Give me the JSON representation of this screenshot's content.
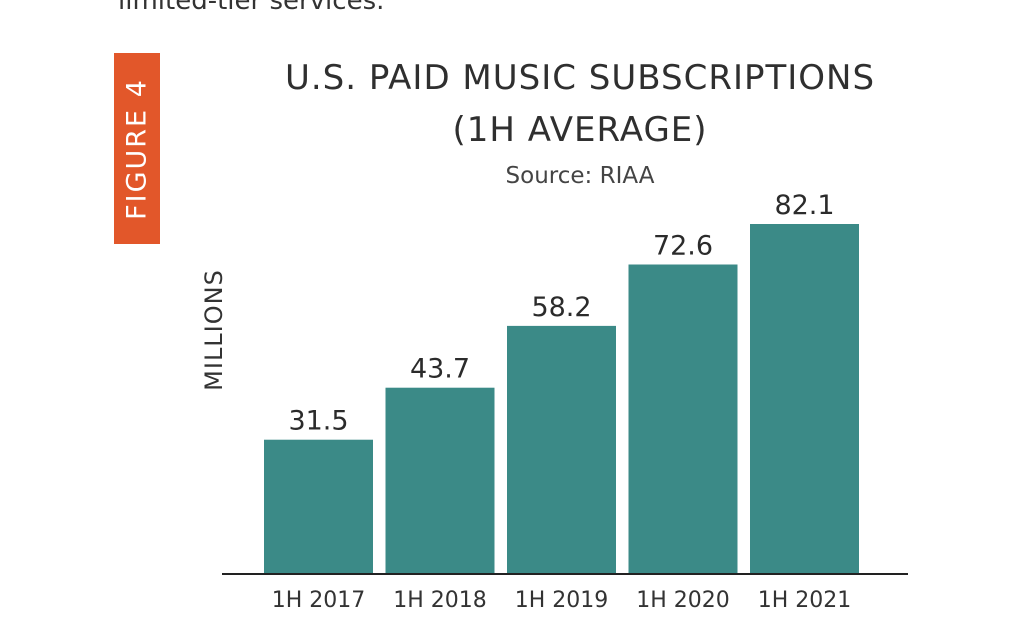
{
  "page": {
    "top_text": "limited-tier services.",
    "figure_tag": "FIGURE 4"
  },
  "chart_data": {
    "type": "bar",
    "title_line1": "U.S. PAID MUSIC SUBSCRIPTIONS",
    "title_line2": "(1H AVERAGE)",
    "subtitle": "Source: RIAA",
    "ylabel": "MILLIONS",
    "xlabel": "",
    "categories": [
      "1H 2017",
      "1H 2018",
      "1H 2019",
      "1H 2020",
      "1H 2021"
    ],
    "values": [
      31.5,
      43.7,
      58.2,
      72.6,
      82.1
    ],
    "value_labels": [
      "31.5",
      "43.7",
      "58.2",
      "72.6",
      "82.1"
    ],
    "ylim": [
      0,
      82.1
    ],
    "grid": false,
    "legend": "none",
    "colors": {
      "bar": "#3b8a87",
      "axis": "#222222",
      "tag": "#e2572a"
    }
  }
}
